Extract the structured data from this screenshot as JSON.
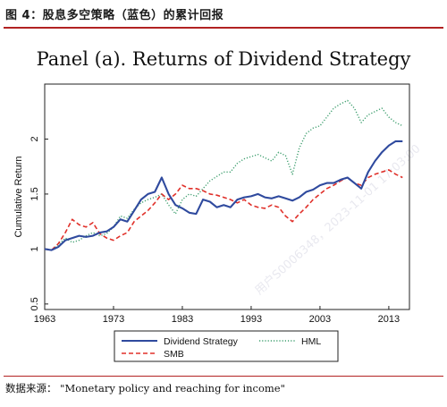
{
  "figure": {
    "caption": "图 4：股息多空策略（蓝色）的累计回报",
    "source_label": "数据来源：",
    "source_text": "\"Monetary policy and reaching for income\"",
    "watermark": "用户S0006348，2023-11-01 17:03:00"
  },
  "colors": {
    "dividend": "#2f4a9e",
    "smb": "#e0302a",
    "hml": "#3f9f6f",
    "caption_rule": "#b22222"
  },
  "chart_data": {
    "type": "line",
    "title": "Panel (a). Returns of Dividend Strategy",
    "xlabel": "",
    "ylabel": "Cumulative Return",
    "xlim": [
      1963,
      2016
    ],
    "ylim": [
      0.45,
      2.5
    ],
    "xticks": [
      1963,
      1973,
      1983,
      1993,
      2003,
      2013
    ],
    "yticks": [
      0.5,
      1,
      1.5,
      2
    ],
    "ytick_labels": [
      "0.5",
      "1",
      "1.5",
      "2"
    ],
    "grid": false,
    "legend": {
      "placement": "bottom",
      "entries": [
        "Dividend Strategy",
        "HML",
        "SMB"
      ]
    },
    "series": [
      {
        "name": "Dividend Strategy",
        "style": "solid",
        "x": [
          1963,
          1964,
          1965,
          1966,
          1967,
          1968,
          1969,
          1970,
          1971,
          1972,
          1973,
          1974,
          1975,
          1976,
          1977,
          1978,
          1979,
          1980,
          1981,
          1982,
          1983,
          1984,
          1985,
          1986,
          1987,
          1988,
          1989,
          1990,
          1991,
          1992,
          1993,
          1994,
          1995,
          1996,
          1997,
          1998,
          1999,
          2000,
          2001,
          2002,
          2003,
          2004,
          2005,
          2006,
          2007,
          2008,
          2009,
          2010,
          2011,
          2012,
          2013,
          2014,
          2015
        ],
        "values": [
          1.0,
          0.99,
          1.02,
          1.08,
          1.1,
          1.12,
          1.11,
          1.12,
          1.15,
          1.16,
          1.2,
          1.27,
          1.25,
          1.35,
          1.45,
          1.5,
          1.52,
          1.65,
          1.5,
          1.4,
          1.37,
          1.33,
          1.32,
          1.45,
          1.43,
          1.38,
          1.4,
          1.38,
          1.45,
          1.47,
          1.48,
          1.5,
          1.47,
          1.46,
          1.48,
          1.46,
          1.44,
          1.47,
          1.52,
          1.54,
          1.58,
          1.6,
          1.6,
          1.63,
          1.65,
          1.6,
          1.55,
          1.7,
          1.8,
          1.88,
          1.94,
          1.98,
          1.98
        ]
      },
      {
        "name": "HML",
        "style": "dotted",
        "x": [
          1963,
          1964,
          1965,
          1966,
          1967,
          1968,
          1969,
          1970,
          1971,
          1972,
          1973,
          1974,
          1975,
          1976,
          1977,
          1978,
          1979,
          1980,
          1981,
          1982,
          1983,
          1984,
          1985,
          1986,
          1987,
          1988,
          1989,
          1990,
          1991,
          1992,
          1993,
          1994,
          1995,
          1996,
          1997,
          1998,
          1999,
          2000,
          2001,
          2002,
          2003,
          2004,
          2005,
          2006,
          2007,
          2008,
          2009,
          2010,
          2011,
          2012,
          2013,
          2014,
          2015
        ],
        "values": [
          1.0,
          0.99,
          1.04,
          1.1,
          1.06,
          1.08,
          1.12,
          1.15,
          1.12,
          1.14,
          1.2,
          1.3,
          1.28,
          1.36,
          1.42,
          1.45,
          1.47,
          1.5,
          1.4,
          1.32,
          1.45,
          1.5,
          1.48,
          1.55,
          1.62,
          1.66,
          1.7,
          1.7,
          1.78,
          1.82,
          1.84,
          1.86,
          1.83,
          1.8,
          1.88,
          1.85,
          1.68,
          1.92,
          2.05,
          2.1,
          2.12,
          2.2,
          2.28,
          2.32,
          2.35,
          2.28,
          2.15,
          2.22,
          2.25,
          2.28,
          2.2,
          2.15,
          2.12
        ]
      },
      {
        "name": "SMB",
        "style": "dashed",
        "x": [
          1963,
          1964,
          1965,
          1966,
          1967,
          1968,
          1969,
          1970,
          1971,
          1972,
          1973,
          1974,
          1975,
          1976,
          1977,
          1978,
          1979,
          1980,
          1981,
          1982,
          1983,
          1984,
          1985,
          1986,
          1987,
          1988,
          1989,
          1990,
          1991,
          1992,
          1993,
          1994,
          1995,
          1996,
          1997,
          1998,
          1999,
          2000,
          2001,
          2002,
          2003,
          2004,
          2005,
          2006,
          2007,
          2008,
          2009,
          2010,
          2011,
          2012,
          2013,
          2014,
          2015
        ],
        "values": [
          1.0,
          0.99,
          1.05,
          1.15,
          1.27,
          1.22,
          1.2,
          1.24,
          1.14,
          1.1,
          1.08,
          1.12,
          1.15,
          1.25,
          1.3,
          1.35,
          1.42,
          1.5,
          1.45,
          1.5,
          1.58,
          1.55,
          1.55,
          1.53,
          1.5,
          1.49,
          1.47,
          1.45,
          1.42,
          1.45,
          1.4,
          1.38,
          1.37,
          1.4,
          1.38,
          1.3,
          1.25,
          1.32,
          1.38,
          1.45,
          1.5,
          1.55,
          1.58,
          1.62,
          1.65,
          1.6,
          1.58,
          1.65,
          1.68,
          1.7,
          1.72,
          1.68,
          1.65
        ]
      }
    ]
  }
}
